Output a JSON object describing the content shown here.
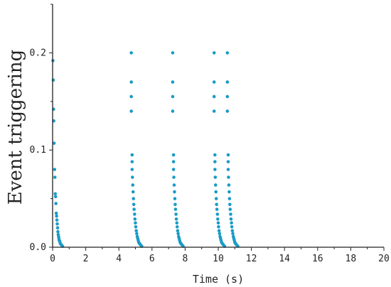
{
  "chart_data": {
    "type": "scatter",
    "title": "",
    "xlabel": "Time (s)",
    "ylabel": "Event triggering",
    "xlim": [
      0,
      20
    ],
    "ylim": [
      0,
      0.25
    ],
    "xticks": [
      "0",
      "2",
      "4",
      "6",
      "8",
      "10",
      "12",
      "14",
      "16",
      "18",
      "20"
    ],
    "yticks": [
      "0.0",
      "0.1",
      "0.2"
    ],
    "ytick_values": [
      0,
      0.1,
      0.2
    ],
    "grid": false,
    "marker_color": "#1a9bc7",
    "series": [
      {
        "points": [
          [
            0.02,
            0.192
          ],
          [
            0.04,
            0.172
          ],
          [
            0.06,
            0.142
          ],
          [
            0.07,
            0.13
          ],
          [
            0.09,
            0.107
          ],
          [
            0.12,
            0.08
          ],
          [
            0.14,
            0.072
          ],
          [
            0.16,
            0.055
          ],
          [
            0.18,
            0.052
          ],
          [
            0.2,
            0.045
          ],
          [
            0.22,
            0.035
          ],
          [
            0.24,
            0.032
          ],
          [
            0.26,
            0.028
          ],
          [
            0.28,
            0.024
          ],
          [
            0.3,
            0.02
          ],
          [
            0.32,
            0.016
          ],
          [
            0.34,
            0.013
          ],
          [
            0.36,
            0.011
          ],
          [
            0.38,
            0.009
          ],
          [
            0.4,
            0.007
          ],
          [
            0.43,
            0.006
          ],
          [
            0.46,
            0.004
          ],
          [
            0.5,
            0.003
          ],
          [
            0.55,
            0.002
          ],
          [
            0.6,
            0.001
          ],
          [
            4.75,
            0.2
          ],
          [
            4.75,
            0.17
          ],
          [
            4.75,
            0.155
          ],
          [
            4.75,
            0.14
          ],
          [
            4.8,
            0.095
          ],
          [
            4.8,
            0.088
          ],
          [
            4.8,
            0.08
          ],
          [
            4.82,
            0.072
          ],
          [
            4.84,
            0.064
          ],
          [
            4.86,
            0.057
          ],
          [
            4.88,
            0.05
          ],
          [
            4.9,
            0.044
          ],
          [
            4.92,
            0.039
          ],
          [
            4.95,
            0.034
          ],
          [
            4.97,
            0.029
          ],
          [
            5.0,
            0.025
          ],
          [
            5.02,
            0.021
          ],
          [
            5.05,
            0.017
          ],
          [
            5.08,
            0.014
          ],
          [
            5.11,
            0.011
          ],
          [
            5.14,
            0.009
          ],
          [
            5.17,
            0.007
          ],
          [
            5.2,
            0.005
          ],
          [
            5.24,
            0.004
          ],
          [
            5.28,
            0.003
          ],
          [
            5.33,
            0.002
          ],
          [
            5.38,
            0.001
          ],
          [
            7.25,
            0.2
          ],
          [
            7.25,
            0.17
          ],
          [
            7.25,
            0.155
          ],
          [
            7.25,
            0.14
          ],
          [
            7.3,
            0.095
          ],
          [
            7.3,
            0.088
          ],
          [
            7.3,
            0.08
          ],
          [
            7.32,
            0.072
          ],
          [
            7.34,
            0.064
          ],
          [
            7.36,
            0.057
          ],
          [
            7.38,
            0.05
          ],
          [
            7.4,
            0.044
          ],
          [
            7.42,
            0.039
          ],
          [
            7.45,
            0.034
          ],
          [
            7.47,
            0.029
          ],
          [
            7.5,
            0.025
          ],
          [
            7.52,
            0.021
          ],
          [
            7.55,
            0.017
          ],
          [
            7.58,
            0.014
          ],
          [
            7.61,
            0.011
          ],
          [
            7.64,
            0.009
          ],
          [
            7.67,
            0.007
          ],
          [
            7.7,
            0.005
          ],
          [
            7.74,
            0.004
          ],
          [
            7.78,
            0.003
          ],
          [
            7.83,
            0.002
          ],
          [
            7.88,
            0.001
          ],
          [
            9.75,
            0.2
          ],
          [
            9.75,
            0.17
          ],
          [
            9.75,
            0.155
          ],
          [
            9.75,
            0.14
          ],
          [
            9.8,
            0.095
          ],
          [
            9.8,
            0.088
          ],
          [
            9.8,
            0.08
          ],
          [
            9.82,
            0.072
          ],
          [
            9.84,
            0.064
          ],
          [
            9.86,
            0.057
          ],
          [
            9.88,
            0.05
          ],
          [
            9.9,
            0.044
          ],
          [
            9.92,
            0.039
          ],
          [
            9.95,
            0.034
          ],
          [
            9.97,
            0.029
          ],
          [
            10.0,
            0.025
          ],
          [
            10.02,
            0.021
          ],
          [
            10.05,
            0.017
          ],
          [
            10.08,
            0.014
          ],
          [
            10.11,
            0.011
          ],
          [
            10.14,
            0.009
          ],
          [
            10.17,
            0.007
          ],
          [
            10.2,
            0.005
          ],
          [
            10.24,
            0.004
          ],
          [
            10.28,
            0.003
          ],
          [
            10.33,
            0.002
          ],
          [
            10.38,
            0.001
          ],
          [
            10.55,
            0.2
          ],
          [
            10.55,
            0.17
          ],
          [
            10.55,
            0.155
          ],
          [
            10.55,
            0.14
          ],
          [
            10.6,
            0.095
          ],
          [
            10.6,
            0.088
          ],
          [
            10.6,
            0.08
          ],
          [
            10.62,
            0.072
          ],
          [
            10.64,
            0.064
          ],
          [
            10.66,
            0.057
          ],
          [
            10.68,
            0.05
          ],
          [
            10.7,
            0.044
          ],
          [
            10.72,
            0.039
          ],
          [
            10.75,
            0.034
          ],
          [
            10.77,
            0.029
          ],
          [
            10.8,
            0.025
          ],
          [
            10.82,
            0.021
          ],
          [
            10.85,
            0.017
          ],
          [
            10.88,
            0.014
          ],
          [
            10.91,
            0.011
          ],
          [
            10.94,
            0.009
          ],
          [
            10.97,
            0.007
          ],
          [
            11.0,
            0.005
          ],
          [
            11.04,
            0.004
          ],
          [
            11.08,
            0.003
          ],
          [
            11.13,
            0.002
          ],
          [
            11.18,
            0.001
          ]
        ]
      }
    ]
  }
}
